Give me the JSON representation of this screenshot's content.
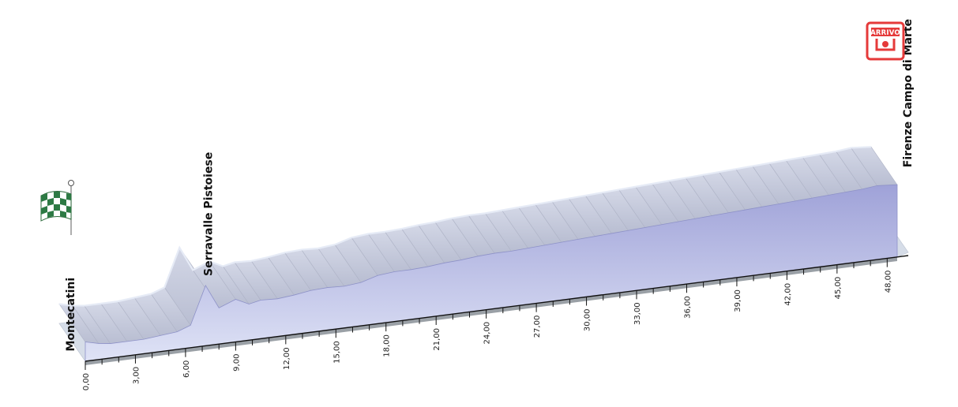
{
  "chart_data": {
    "type": "area",
    "title": "",
    "xlabel": "",
    "ylabel": "",
    "xlim": [
      0,
      48.6
    ],
    "x_ticks": [
      0,
      3,
      6,
      9,
      12,
      15,
      18,
      21,
      24,
      27,
      30,
      33,
      36,
      39,
      42,
      45,
      48
    ],
    "x_tick_labels": [
      "0,00",
      "3,00",
      "6,00",
      "9,00",
      "12,00",
      "15,00",
      "18,00",
      "21,00",
      "24,00",
      "27,00",
      "30,00",
      "33,00",
      "36,00",
      "39,00",
      "42,00",
      "45,00",
      "48,00"
    ],
    "x_minor_step": 1,
    "series": [
      {
        "x": [
          0,
          0.8,
          1.5,
          2.5,
          3.5,
          4.5,
          5.5,
          6.3,
          7.2,
          8.0,
          9.0,
          9.8,
          10.5,
          11.5,
          12.5,
          13.5,
          14.5,
          15.5,
          16.5,
          17.5,
          18.5,
          19.5,
          20.5,
          21.5,
          22.5,
          23.5,
          24.5,
          25.5,
          26.5,
          27.5,
          28.5,
          29.5,
          30.5,
          31.5,
          32.5,
          33.5,
          34.5,
          35.5,
          36.5,
          37.5,
          38.5,
          39.5,
          40.5,
          41.5,
          42.5,
          43.5,
          44.5,
          45.5,
          46.5,
          47.4,
          48.6
        ],
        "y": [
          24,
          20,
          18,
          18,
          18,
          20,
          22,
          28,
          75,
          45,
          53,
          45,
          48,
          47,
          49,
          52,
          53,
          52,
          54,
          60,
          62,
          62,
          63,
          65,
          66,
          68,
          69,
          69,
          70,
          71,
          72,
          73,
          74,
          75,
          76,
          77,
          78,
          79,
          80,
          81,
          82,
          83,
          84,
          85,
          86,
          87,
          88,
          89,
          90,
          92,
          90
        ]
      }
    ],
    "annotations": [
      {
        "km": 0,
        "label": "Montecatini"
      },
      {
        "km": 7.2,
        "label": "Serravalle Pistoiese"
      },
      {
        "km": 48.6,
        "label": "Firenze Campo di Marte"
      }
    ],
    "start_icon": "checkered-flag-icon",
    "finish_icon": "arrivo-icon",
    "finish_badge_text": "ARRIVO",
    "grid": false,
    "colors": {
      "front_face_top": "#9fa2d8",
      "front_face_bottom": "#dfe3f6",
      "top_face": "#c4c9d8",
      "ridge": "#e6ebf6",
      "base_top": "#d6dde8",
      "base_front": "#9aa0a6",
      "axis": "#111111",
      "arrivo_red": "#e53a3a"
    }
  }
}
